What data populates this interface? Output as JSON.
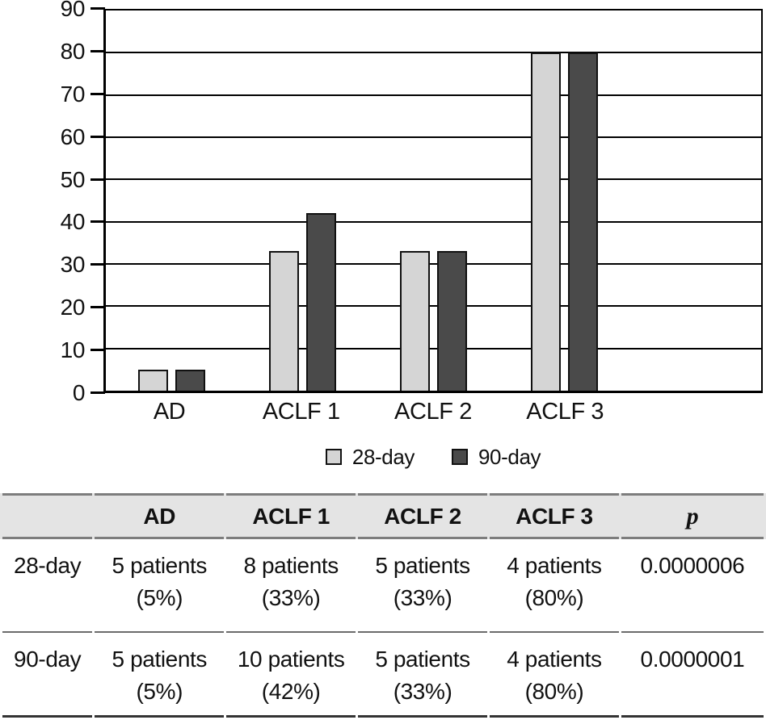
{
  "chart_data": {
    "type": "bar",
    "title": "",
    "xlabel": "",
    "ylabel": "",
    "categories": [
      "AD",
      "ACLF 1",
      "ACLF 2",
      "ACLF 3"
    ],
    "series": [
      {
        "name": "28-day",
        "color": "#d5d5d5",
        "values": [
          5,
          33,
          33,
          80
        ]
      },
      {
        "name": "90-day",
        "color": "#4a4a4a",
        "values": [
          5,
          42,
          33,
          80
        ]
      }
    ],
    "ylim": [
      0,
      90
    ],
    "yticks": [
      0,
      10,
      20,
      30,
      40,
      50,
      60,
      70,
      80,
      90
    ],
    "grid": true,
    "legend_position": "bottom",
    "empty_trailing_slots": 1
  },
  "table": {
    "headers": [
      "",
      "AD",
      "ACLF 1",
      "ACLF 2",
      "ACLF 3",
      "p"
    ],
    "rows": [
      {
        "label": "28-day",
        "cells": [
          [
            "5 patients",
            "(5%)"
          ],
          [
            "8 patients",
            "(33%)"
          ],
          [
            "5 patients",
            "(33%)"
          ],
          [
            "4 patients",
            "(80%)"
          ]
        ],
        "p_value": "0.0000006"
      },
      {
        "label": "90-day",
        "cells": [
          [
            "5 patients",
            "(5%)"
          ],
          [
            "10 patients",
            "(42%)"
          ],
          [
            "5 patients",
            "(33%)"
          ],
          [
            "4 patients",
            "(80%)"
          ]
        ],
        "p_value": "0.0000001"
      }
    ]
  }
}
